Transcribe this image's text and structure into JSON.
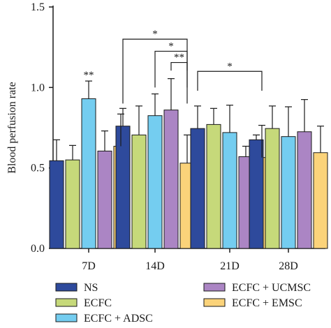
{
  "chart_data": {
    "type": "bar",
    "ylabel": "Blood perfusion rate",
    "xlabel": "",
    "ylim": [
      0,
      1.5
    ],
    "yticks": [
      "0.0",
      "0.5",
      "1.0",
      "1.5"
    ],
    "categories": [
      "7D",
      "14D",
      "21D",
      "28D"
    ],
    "series": [
      {
        "name": "NS",
        "color": "#2e4a9c",
        "values": [
          0.545,
          0.76,
          0.745,
          0.675
        ],
        "errors": [
          0.13,
          0.11,
          0.14,
          0.03
        ]
      },
      {
        "name": "ECFC",
        "color": "#c6d97a",
        "values": [
          0.55,
          0.705,
          0.77,
          0.745
        ],
        "errors": [
          0.09,
          0.18,
          0.1,
          0.14
        ]
      },
      {
        "name": "ECFC + ADSC",
        "color": "#74cdf0",
        "values": [
          0.93,
          0.825,
          0.72,
          0.695
        ],
        "errors": [
          0.11,
          0.135,
          0.17,
          0.185
        ]
      },
      {
        "name": "ECFC + UCMSC",
        "color": "#ab85c4",
        "values": [
          0.605,
          0.86,
          0.57,
          0.725
        ],
        "errors": [
          0.125,
          0.195,
          0.065,
          0.2
        ]
      },
      {
        "name": "ECFC + EMSC",
        "color": "#fbd37a",
        "values": [
          0.635,
          0.53,
          0.565,
          0.595
        ],
        "errors": [
          0.2,
          0.175,
          0.2,
          0.165
        ]
      }
    ],
    "annotations": {
      "sig_7d": "**",
      "brackets": [
        {
          "label": "*",
          "from_group": "14D",
          "from_series": "NS",
          "to_group": "14D",
          "to_series": "ECFC + EMSC"
        },
        {
          "label": "*",
          "from_group": "14D",
          "from_series": "ECFC + ADSC",
          "to_group": "14D",
          "to_series": "ECFC + EMSC"
        },
        {
          "label": "**",
          "from_group": "14D",
          "from_series": "ECFC + UCMSC",
          "to_group": "14D",
          "to_series": "ECFC + EMSC"
        },
        {
          "label": "*",
          "from_group": "21D",
          "from_series": "NS",
          "to_group": "21D",
          "to_series": "ECFC + EMSC"
        }
      ]
    },
    "legend": {
      "placement": "bottom",
      "columns": [
        [
          "NS",
          "ECFC",
          "ECFC + ADSC"
        ],
        [
          "ECFC + UCMSC",
          "ECFC + EMSC"
        ]
      ]
    }
  }
}
